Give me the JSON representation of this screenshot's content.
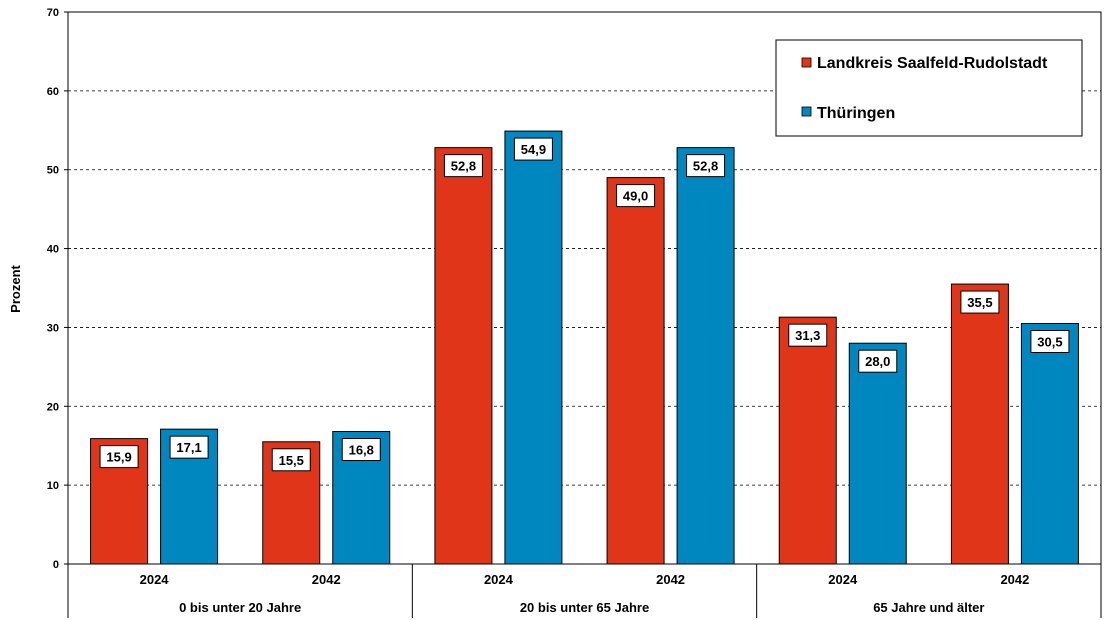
{
  "chart_data": {
    "type": "bar",
    "ylabel": "Prozent",
    "ylim": [
      0,
      70
    ],
    "yticks": [
      0,
      10,
      20,
      30,
      40,
      50,
      60,
      70
    ],
    "grid": "horizontal-dashed",
    "legend_position": "top-right",
    "groups": [
      {
        "label": "0 bis unter 20 Jahre",
        "years": [
          "2024",
          "2042"
        ]
      },
      {
        "label": "20 bis unter 65 Jahre",
        "years": [
          "2024",
          "2042"
        ]
      },
      {
        "label": "65 Jahre und älter",
        "years": [
          "2024",
          "2042"
        ]
      }
    ],
    "series": [
      {
        "name": "Landkreis Saalfeld-Rudolstadt",
        "color": "#e03518",
        "values": [
          15.9,
          15.5,
          52.8,
          49.0,
          31.3,
          35.5
        ],
        "labels": [
          "15,9",
          "15,5",
          "52,8",
          "49,0",
          "31,3",
          "35,5"
        ]
      },
      {
        "name": "Thüringen",
        "color": "#0087c0",
        "values": [
          17.1,
          16.8,
          54.9,
          52.8,
          28.0,
          30.5
        ],
        "labels": [
          "17,1",
          "16,8",
          "54,9",
          "52,8",
          "28,0",
          "30,5"
        ]
      }
    ]
  }
}
